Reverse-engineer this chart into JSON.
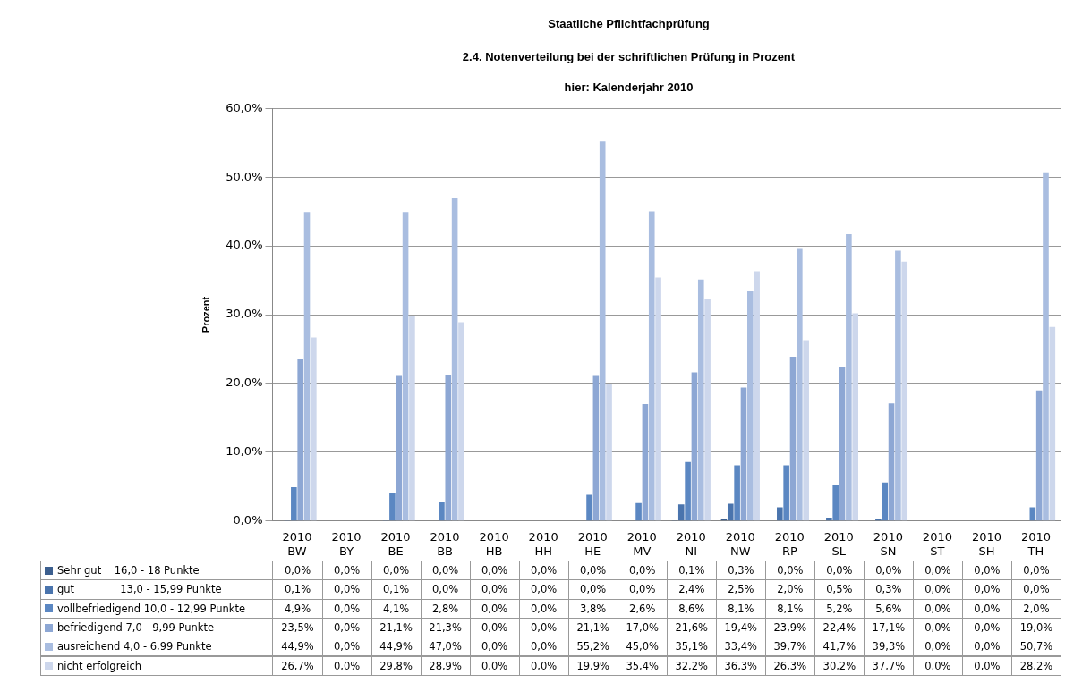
{
  "chart_data": {
    "type": "bar",
    "title": "Staatliche Pflichtfachprüfung",
    "subtitle": "2.4. Notenverteilung bei der schriftlichen Prüfung in Prozent",
    "annotations": [
      "hier: Kalenderjahr 2010"
    ],
    "ylabel": "Prozent",
    "categories": [
      "2010\nBW",
      "2010\nBY",
      "2010\nBE",
      "2010\nBB",
      "2010\nHB",
      "2010\nHH",
      "2010\nHE",
      "2010\nMV",
      "2010\nNI",
      "2010\nNW",
      "2010\nRP",
      "2010\nSL",
      "2010\nSN",
      "2010\nST",
      "2010\nSH",
      "2010\nTH"
    ],
    "ylim": [
      0,
      60
    ],
    "yticks": [
      {
        "value": 0,
        "label": "0,0%"
      },
      {
        "value": 10,
        "label": "10,0%"
      },
      {
        "value": 20,
        "label": "20,0%"
      },
      {
        "value": 30,
        "label": "30,0%"
      },
      {
        "value": 40,
        "label": "40,0%"
      },
      {
        "value": 50,
        "label": "50,0%"
      },
      {
        "value": 60,
        "label": "60,0%"
      }
    ],
    "grid": "y",
    "legend": "bottom",
    "series": [
      {
        "name": "Sehr gut    16,0 - 18 Punkte",
        "color": "#3c5f8f",
        "values": [
          0,
          0,
          0,
          0,
          0,
          0,
          0,
          0,
          0.1,
          0.3,
          0,
          0,
          0,
          0,
          0,
          0
        ],
        "value_labels": [
          "0,0%",
          "0,0%",
          "0,0%",
          "0,0%",
          "0,0%",
          "0,0%",
          "0,0%",
          "0,0%",
          "0,1%",
          "0,3%",
          "0,0%",
          "0,0%",
          "0,0%",
          "0,0%",
          "0,0%",
          "0,0%"
        ]
      },
      {
        "name": "gut              13,0 - 15,99 Punkte",
        "color": "#4a74ad",
        "values": [
          0.1,
          0,
          0.1,
          0,
          0,
          0,
          0,
          0,
          2.4,
          2.5,
          2.0,
          0.5,
          0.3,
          0,
          0,
          0
        ],
        "value_labels": [
          "0,1%",
          "0,0%",
          "0,1%",
          "0,0%",
          "0,0%",
          "0,0%",
          "0,0%",
          "0,0%",
          "2,4%",
          "2,5%",
          "2,0%",
          "0,5%",
          "0,3%",
          "0,0%",
          "0,0%",
          "0,0%"
        ]
      },
      {
        "name": "vollbefriedigend 10,0 - 12,99 Punkte",
        "color": "#5b87c2",
        "values": [
          4.9,
          0,
          4.1,
          2.8,
          0,
          0,
          3.8,
          2.6,
          8.6,
          8.1,
          8.1,
          5.2,
          5.6,
          0,
          0,
          2.0
        ],
        "value_labels": [
          "4,9%",
          "0,0%",
          "4,1%",
          "2,8%",
          "0,0%",
          "0,0%",
          "3,8%",
          "2,6%",
          "8,6%",
          "8,1%",
          "8,1%",
          "5,2%",
          "5,6%",
          "0,0%",
          "0,0%",
          "2,0%"
        ]
      },
      {
        "name": "befriedigend 7,0 - 9,99 Punkte",
        "color": "#8da7d4",
        "values": [
          23.5,
          0,
          21.1,
          21.3,
          0,
          0,
          21.1,
          17.0,
          21.6,
          19.4,
          23.9,
          22.4,
          17.1,
          0,
          0,
          19.0
        ],
        "value_labels": [
          "23,5%",
          "0,0%",
          "21,1%",
          "21,3%",
          "0,0%",
          "0,0%",
          "21,1%",
          "17,0%",
          "21,6%",
          "19,4%",
          "23,9%",
          "22,4%",
          "17,1%",
          "0,0%",
          "0,0%",
          "19,0%"
        ]
      },
      {
        "name": "ausreichend 4,0 - 6,99 Punkte",
        "color": "#a9bde0",
        "values": [
          44.9,
          0,
          44.9,
          47.0,
          0,
          0,
          55.2,
          45.0,
          35.1,
          33.4,
          39.7,
          41.7,
          39.3,
          0,
          0,
          50.7
        ],
        "value_labels": [
          "44,9%",
          "0,0%",
          "44,9%",
          "47,0%",
          "0,0%",
          "0,0%",
          "55,2%",
          "45,0%",
          "35,1%",
          "33,4%",
          "39,7%",
          "41,7%",
          "39,3%",
          "0,0%",
          "0,0%",
          "50,7%"
        ]
      },
      {
        "name": "nicht erfolgreich",
        "color": "#cdd7ec",
        "values": [
          26.7,
          0,
          29.8,
          28.9,
          0,
          0,
          19.9,
          35.4,
          32.2,
          36.3,
          26.3,
          30.2,
          37.7,
          0,
          0,
          28.2
        ],
        "value_labels": [
          "26,7%",
          "0,0%",
          "29,8%",
          "28,9%",
          "0,0%",
          "0,0%",
          "19,9%",
          "35,4%",
          "32,2%",
          "36,3%",
          "26,3%",
          "30,2%",
          "37,7%",
          "0,0%",
          "0,0%",
          "28,2%"
        ]
      }
    ]
  }
}
